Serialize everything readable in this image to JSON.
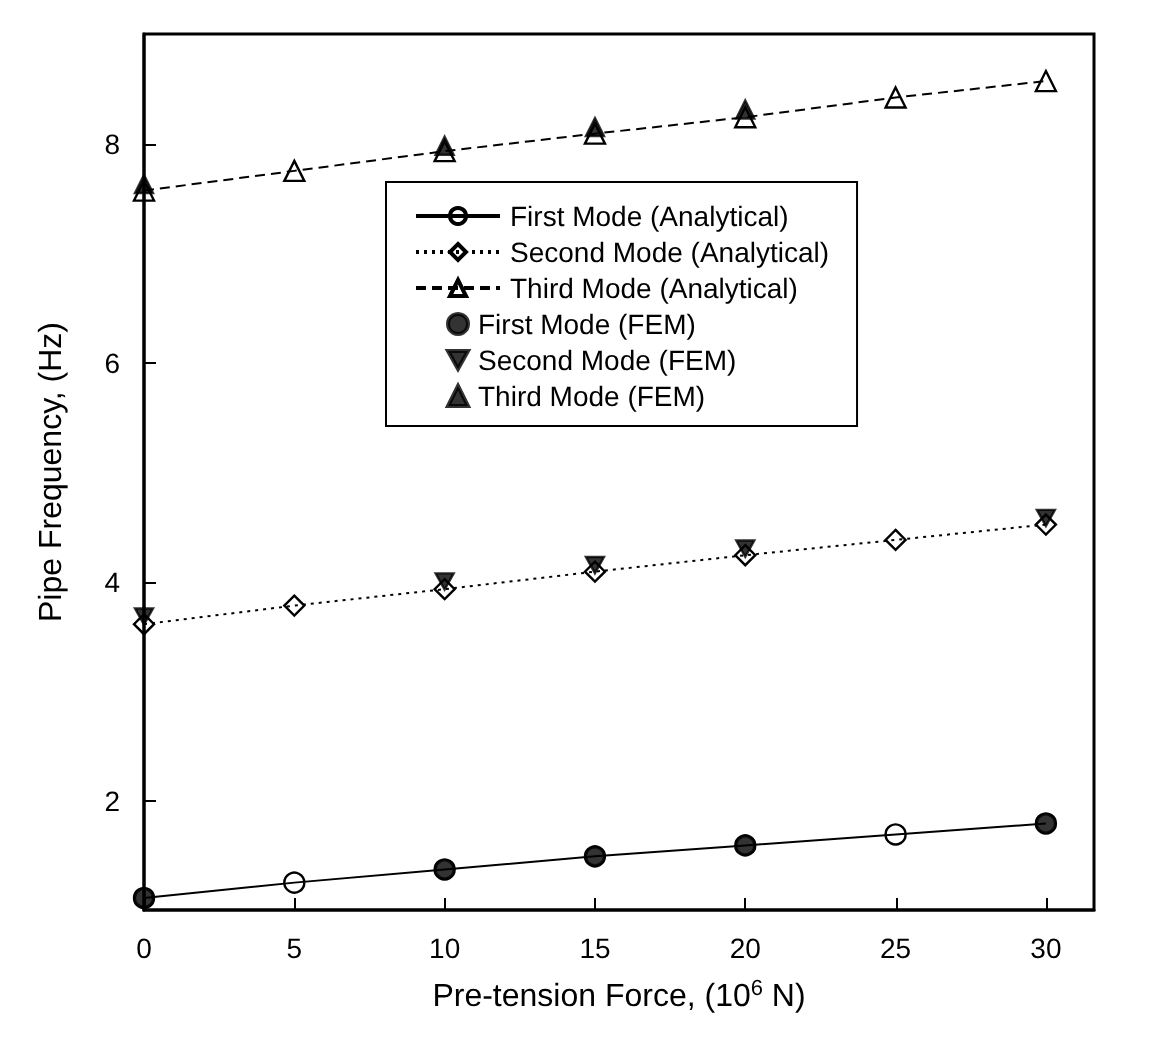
{
  "chart_data": {
    "type": "line",
    "xlabel": "Pre-tension Force, (10$^{6}$ N)",
    "ylabel": "Pipe Frequency, (Hz)",
    "xlim": [
      0,
      31.6
    ],
    "xticks": [
      0,
      5,
      10,
      15,
      20,
      25,
      30
    ],
    "ylim": [
      1,
      9
    ],
    "yticks": [
      2,
      4,
      6,
      8
    ],
    "grid": false,
    "legend": "top",
    "series": [
      {
        "name": "First Mode (Analytical)",
        "color": "#000000",
        "marker": "circle",
        "line_style": "solid",
        "x": [
          0,
          5,
          10,
          15,
          20,
          25,
          30
        ],
        "values": [
          1.11,
          1.25,
          1.37,
          1.49,
          1.59,
          1.69,
          1.79
        ]
      },
      {
        "name": "Second Mode (Analytical)",
        "color": "#000000",
        "marker": "diamond",
        "line_style": "dotted",
        "x": [
          0,
          5,
          10,
          15,
          20,
          25,
          30
        ],
        "values": [
          3.61,
          3.78,
          3.93,
          4.09,
          4.24,
          4.38,
          4.52
        ]
      },
      {
        "name": "Third Mode (Analytical)",
        "color": "#000000",
        "marker": "triangle",
        "line_style": "dashed",
        "x": [
          0,
          5,
          10,
          15,
          20,
          25,
          30
        ],
        "values": [
          7.57,
          7.75,
          7.93,
          8.09,
          8.24,
          8.42,
          8.57
        ]
      },
      {
        "name": "First Mode (FEM)",
        "type": "scatter",
        "color": "#000000",
        "marker": "circle",
        "x": [
          0,
          10,
          15,
          20,
          30
        ],
        "values": [
          1.11,
          1.37,
          1.49,
          1.59,
          1.79
        ]
      },
      {
        "name": "Second Mode (FEM)",
        "type": "scatter",
        "color": "#000000",
        "marker": "triangle-down",
        "x": [
          0,
          10,
          15,
          20,
          30
        ],
        "values": [
          3.68,
          4.0,
          4.15,
          4.3,
          4.58
        ]
      },
      {
        "name": "Third Mode (FEM)",
        "type": "scatter",
        "color": "#000000",
        "marker": "triangle",
        "x": [
          0,
          10,
          15,
          20
        ],
        "values": [
          7.63,
          7.98,
          8.15,
          8.31
        ]
      }
    ]
  }
}
